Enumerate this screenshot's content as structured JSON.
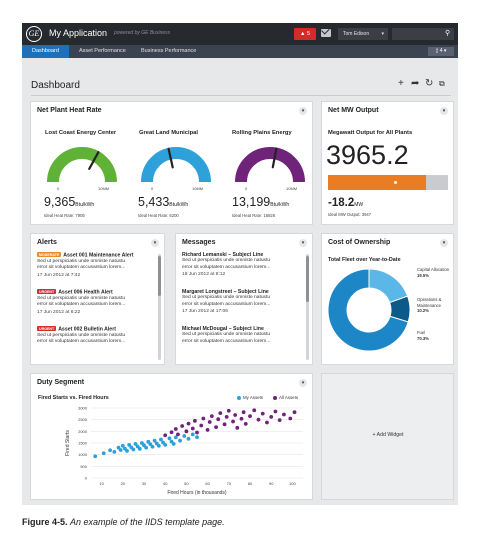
{
  "app": {
    "logo_text": "GE",
    "title": "My Application",
    "powered_by": "powered by GE Business",
    "alert_count": "5",
    "user_name": "Tom Edison",
    "search_placeholder": ""
  },
  "nav": {
    "tabs": [
      "Dashboard",
      "Asset Performance",
      "Business Performance"
    ],
    "active_tab": "Dashboard",
    "right_control": "4"
  },
  "page": {
    "title": "Dashboard",
    "toolbar_icons": [
      "add-icon",
      "share-icon",
      "refresh-icon",
      "layout-icon"
    ]
  },
  "heat_rate": {
    "title": "Net Plant Heat Rate",
    "gauges": [
      {
        "name": "Lost Coast Energy Center",
        "value": "9,365",
        "unit": "Btu/kWh",
        "ideal": "Ideal Heat Rate: 7905",
        "min_label": "0",
        "max_label": "10MM",
        "fraction": 0.66,
        "color": "#5fb235"
      },
      {
        "name": "Great Land Municipal",
        "value": "5,433",
        "unit": "Btu/kWh",
        "ideal": "Ideal Heat Rate: 6200",
        "min_label": "0",
        "max_label": "10MM",
        "fraction": 0.43,
        "color": "#2ea0da"
      },
      {
        "name": "Rolling Plains Energy",
        "value": "13,199",
        "unit": "Btu/kWh",
        "ideal": "Ideal Heat Rate: 16826",
        "min_label": "0",
        "max_label": "10MM",
        "fraction": 0.56,
        "color": "#6f2479"
      }
    ]
  },
  "net_mw": {
    "title": "Net MW Output",
    "subtitle": "Megawatt Output for All Plants",
    "value": "3965.2",
    "bar_fraction": 0.82,
    "marker_fraction": 0.55,
    "bar_color": "#ea7c22",
    "delta": "-18.2",
    "delta_unit": "MW",
    "ideal": "Ideal MW Output: 3947"
  },
  "alerts": {
    "title": "Alerts",
    "items": [
      {
        "badge": "MODERATE",
        "badge_color": "#e98c2a",
        "title": "Asset 001 Maintenance Alert",
        "line1": "Sed ut perspiciatis unde omniste natustu",
        "line2": "error sit voluptatem accusantium lorem...",
        "date": "17 Jun 2012 at 7:42"
      },
      {
        "badge": "URGENT",
        "badge_color": "#d3312f",
        "title": "Asset 006 Health Alert",
        "line1": "Sed ut perspiciatis unde omniste natustu",
        "line2": "error sit voluptatem accusantium lorem...",
        "date": "17 Jun 2012 at 6:22"
      },
      {
        "badge": "URGENT",
        "badge_color": "#d3312f",
        "title": "Asset 002 Bulletin Alert",
        "line1": "Sed ut perspiciatis unde omniste natustu",
        "line2": "error sit voluptatem accusantium lorem...",
        "date": ""
      }
    ]
  },
  "messages": {
    "title": "Messages",
    "items": [
      {
        "title": "Richard Lemanski – Subject Line",
        "line1": "Sed ut perspiciatis unde omniste natustu",
        "line2": "error sit voluptatem accusantium lorem...",
        "date": "18 Jun 2012 at 8:12"
      },
      {
        "title": "Margaret Longstreet – Subject Line",
        "line1": "Sed ut perspiciatis unde omniste natustu",
        "line2": "error sit voluptatem accusantium lorem...",
        "date": "17 Jun 2012 at 17:06"
      },
      {
        "title": "Michael McDougal – Subject Line",
        "line1": "Sed ut perspiciatis unde omniste natustu",
        "line2": "error sit voluptatem accusantium lorem...",
        "date": ""
      }
    ]
  },
  "cost": {
    "title": "Cost of Ownership",
    "subtitle": "Total Fleet over Year-to-Date",
    "segments": [
      {
        "label": "Capital Allocation",
        "percent": "19.5%",
        "value": 19.5,
        "color": "#5bb7e8"
      },
      {
        "label": "Operations & Maintenance",
        "percent": "10.2%",
        "value": 10.2,
        "color": "#0c5a87"
      },
      {
        "label": "Fuel",
        "percent": "70.3%",
        "value": 70.3,
        "color": "#1d86c6"
      }
    ]
  },
  "duty": {
    "title": "Duty Segment",
    "subtitle": "Fired Starts vs. Fired Hours",
    "legend": [
      {
        "name": "My Assets",
        "color": "#2ba0da"
      },
      {
        "name": "All Assets",
        "color": "#6f2479"
      }
    ]
  },
  "chart_data": {
    "type": "scatter",
    "title": "Fired Starts vs. Fired Hours",
    "xlabel": "Fired Hours (in thousands)",
    "ylabel": "Fired Starts",
    "x_ticks": [
      "10",
      "20",
      "30",
      "40",
      "50",
      "60",
      "70",
      "80",
      "90",
      "100"
    ],
    "y_ticks": [
      "0",
      "500",
      "1000",
      "1500",
      "2000",
      "2500",
      "3000"
    ],
    "xlim": [
      5,
      105
    ],
    "ylim": [
      0,
      3000
    ],
    "grid": true,
    "legend_position": "top-right",
    "series": [
      {
        "name": "My Assets",
        "color": "#2ba0da",
        "points": [
          [
            7,
            930
          ],
          [
            11,
            1060
          ],
          [
            14,
            1190
          ],
          [
            16,
            1120
          ],
          [
            18,
            1300
          ],
          [
            19,
            1200
          ],
          [
            20,
            1380
          ],
          [
            21,
            1260
          ],
          [
            22,
            1160
          ],
          [
            23,
            1420
          ],
          [
            24,
            1310
          ],
          [
            25,
            1220
          ],
          [
            26,
            1460
          ],
          [
            27,
            1350
          ],
          [
            28,
            1250
          ],
          [
            29,
            1500
          ],
          [
            30,
            1400
          ],
          [
            31,
            1300
          ],
          [
            32,
            1550
          ],
          [
            33,
            1450
          ],
          [
            34,
            1340
          ],
          [
            35,
            1600
          ],
          [
            36,
            1480
          ],
          [
            37,
            1380
          ],
          [
            38,
            1650
          ],
          [
            39,
            1520
          ],
          [
            40,
            1420
          ],
          [
            42,
            1700
          ],
          [
            43,
            1560
          ],
          [
            44,
            1460
          ],
          [
            45,
            1740
          ],
          [
            47,
            1600
          ],
          [
            49,
            1800
          ],
          [
            51,
            1680
          ],
          [
            53,
            1870
          ],
          [
            55,
            1750
          ]
        ]
      },
      {
        "name": "All Assets",
        "color": "#6f2479",
        "points": [
          [
            40,
            1830
          ],
          [
            43,
            1960
          ],
          [
            45,
            2100
          ],
          [
            46,
            1870
          ],
          [
            48,
            2230
          ],
          [
            50,
            2000
          ],
          [
            51,
            2330
          ],
          [
            53,
            2120
          ],
          [
            54,
            2450
          ],
          [
            55,
            1950
          ],
          [
            57,
            2250
          ],
          [
            58,
            2550
          ],
          [
            60,
            2060
          ],
          [
            61,
            2400
          ],
          [
            62,
            2650
          ],
          [
            64,
            2180
          ],
          [
            65,
            2520
          ],
          [
            66,
            2780
          ],
          [
            68,
            2300
          ],
          [
            69,
            2620
          ],
          [
            70,
            2880
          ],
          [
            72,
            2420
          ],
          [
            73,
            2700
          ],
          [
            74,
            2150
          ],
          [
            76,
            2540
          ],
          [
            77,
            2820
          ],
          [
            78,
            2320
          ],
          [
            80,
            2650
          ],
          [
            82,
            2900
          ],
          [
            84,
            2500
          ],
          [
            86,
            2760
          ],
          [
            88,
            2380
          ],
          [
            90,
            2620
          ],
          [
            92,
            2850
          ],
          [
            94,
            2480
          ],
          [
            96,
            2720
          ],
          [
            99,
            2550
          ],
          [
            101,
            2820
          ]
        ]
      }
    ]
  },
  "add_widget": {
    "label": "+ Add Widget"
  },
  "caption": {
    "figure": "Figure 4-5.",
    "text": "An example of the IIDS template page."
  }
}
